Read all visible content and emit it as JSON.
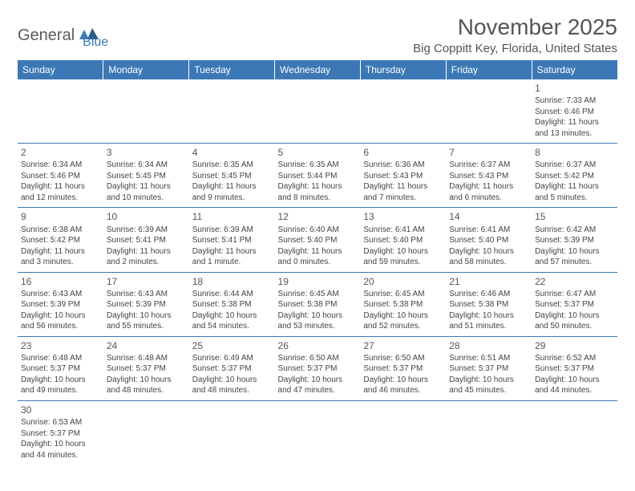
{
  "logo": {
    "part1": "General",
    "part2": "Blue"
  },
  "title": "November 2025",
  "location": "Big Coppitt Key, Florida, United States",
  "colors": {
    "header_bg": "#3b78b5",
    "header_text": "#ffffff",
    "border": "#3b78b5",
    "body_text": "#444444"
  },
  "weekdays": [
    "Sunday",
    "Monday",
    "Tuesday",
    "Wednesday",
    "Thursday",
    "Friday",
    "Saturday"
  ],
  "weeks": [
    [
      null,
      null,
      null,
      null,
      null,
      null,
      {
        "day": "1",
        "sunrise": "Sunrise: 7:33 AM",
        "sunset": "Sunset: 6:46 PM",
        "daylight": "Daylight: 11 hours and 13 minutes."
      }
    ],
    [
      {
        "day": "2",
        "sunrise": "Sunrise: 6:34 AM",
        "sunset": "Sunset: 5:46 PM",
        "daylight": "Daylight: 11 hours and 12 minutes."
      },
      {
        "day": "3",
        "sunrise": "Sunrise: 6:34 AM",
        "sunset": "Sunset: 5:45 PM",
        "daylight": "Daylight: 11 hours and 10 minutes."
      },
      {
        "day": "4",
        "sunrise": "Sunrise: 6:35 AM",
        "sunset": "Sunset: 5:45 PM",
        "daylight": "Daylight: 11 hours and 9 minutes."
      },
      {
        "day": "5",
        "sunrise": "Sunrise: 6:35 AM",
        "sunset": "Sunset: 5:44 PM",
        "daylight": "Daylight: 11 hours and 8 minutes."
      },
      {
        "day": "6",
        "sunrise": "Sunrise: 6:36 AM",
        "sunset": "Sunset: 5:43 PM",
        "daylight": "Daylight: 11 hours and 7 minutes."
      },
      {
        "day": "7",
        "sunrise": "Sunrise: 6:37 AM",
        "sunset": "Sunset: 5:43 PM",
        "daylight": "Daylight: 11 hours and 6 minutes."
      },
      {
        "day": "8",
        "sunrise": "Sunrise: 6:37 AM",
        "sunset": "Sunset: 5:42 PM",
        "daylight": "Daylight: 11 hours and 5 minutes."
      }
    ],
    [
      {
        "day": "9",
        "sunrise": "Sunrise: 6:38 AM",
        "sunset": "Sunset: 5:42 PM",
        "daylight": "Daylight: 11 hours and 3 minutes."
      },
      {
        "day": "10",
        "sunrise": "Sunrise: 6:39 AM",
        "sunset": "Sunset: 5:41 PM",
        "daylight": "Daylight: 11 hours and 2 minutes."
      },
      {
        "day": "11",
        "sunrise": "Sunrise: 6:39 AM",
        "sunset": "Sunset: 5:41 PM",
        "daylight": "Daylight: 11 hours and 1 minute."
      },
      {
        "day": "12",
        "sunrise": "Sunrise: 6:40 AM",
        "sunset": "Sunset: 5:40 PM",
        "daylight": "Daylight: 11 hours and 0 minutes."
      },
      {
        "day": "13",
        "sunrise": "Sunrise: 6:41 AM",
        "sunset": "Sunset: 5:40 PM",
        "daylight": "Daylight: 10 hours and 59 minutes."
      },
      {
        "day": "14",
        "sunrise": "Sunrise: 6:41 AM",
        "sunset": "Sunset: 5:40 PM",
        "daylight": "Daylight: 10 hours and 58 minutes."
      },
      {
        "day": "15",
        "sunrise": "Sunrise: 6:42 AM",
        "sunset": "Sunset: 5:39 PM",
        "daylight": "Daylight: 10 hours and 57 minutes."
      }
    ],
    [
      {
        "day": "16",
        "sunrise": "Sunrise: 6:43 AM",
        "sunset": "Sunset: 5:39 PM",
        "daylight": "Daylight: 10 hours and 56 minutes."
      },
      {
        "day": "17",
        "sunrise": "Sunrise: 6:43 AM",
        "sunset": "Sunset: 5:39 PM",
        "daylight": "Daylight: 10 hours and 55 minutes."
      },
      {
        "day": "18",
        "sunrise": "Sunrise: 6:44 AM",
        "sunset": "Sunset: 5:38 PM",
        "daylight": "Daylight: 10 hours and 54 minutes."
      },
      {
        "day": "19",
        "sunrise": "Sunrise: 6:45 AM",
        "sunset": "Sunset: 5:38 PM",
        "daylight": "Daylight: 10 hours and 53 minutes."
      },
      {
        "day": "20",
        "sunrise": "Sunrise: 6:45 AM",
        "sunset": "Sunset: 5:38 PM",
        "daylight": "Daylight: 10 hours and 52 minutes."
      },
      {
        "day": "21",
        "sunrise": "Sunrise: 6:46 AM",
        "sunset": "Sunset: 5:38 PM",
        "daylight": "Daylight: 10 hours and 51 minutes."
      },
      {
        "day": "22",
        "sunrise": "Sunrise: 6:47 AM",
        "sunset": "Sunset: 5:37 PM",
        "daylight": "Daylight: 10 hours and 50 minutes."
      }
    ],
    [
      {
        "day": "23",
        "sunrise": "Sunrise: 6:48 AM",
        "sunset": "Sunset: 5:37 PM",
        "daylight": "Daylight: 10 hours and 49 minutes."
      },
      {
        "day": "24",
        "sunrise": "Sunrise: 6:48 AM",
        "sunset": "Sunset: 5:37 PM",
        "daylight": "Daylight: 10 hours and 48 minutes."
      },
      {
        "day": "25",
        "sunrise": "Sunrise: 6:49 AM",
        "sunset": "Sunset: 5:37 PM",
        "daylight": "Daylight: 10 hours and 48 minutes."
      },
      {
        "day": "26",
        "sunrise": "Sunrise: 6:50 AM",
        "sunset": "Sunset: 5:37 PM",
        "daylight": "Daylight: 10 hours and 47 minutes."
      },
      {
        "day": "27",
        "sunrise": "Sunrise: 6:50 AM",
        "sunset": "Sunset: 5:37 PM",
        "daylight": "Daylight: 10 hours and 46 minutes."
      },
      {
        "day": "28",
        "sunrise": "Sunrise: 6:51 AM",
        "sunset": "Sunset: 5:37 PM",
        "daylight": "Daylight: 10 hours and 45 minutes."
      },
      {
        "day": "29",
        "sunrise": "Sunrise: 6:52 AM",
        "sunset": "Sunset: 5:37 PM",
        "daylight": "Daylight: 10 hours and 44 minutes."
      }
    ],
    [
      {
        "day": "30",
        "sunrise": "Sunrise: 6:53 AM",
        "sunset": "Sunset: 5:37 PM",
        "daylight": "Daylight: 10 hours and 44 minutes."
      },
      null,
      null,
      null,
      null,
      null,
      null
    ]
  ]
}
